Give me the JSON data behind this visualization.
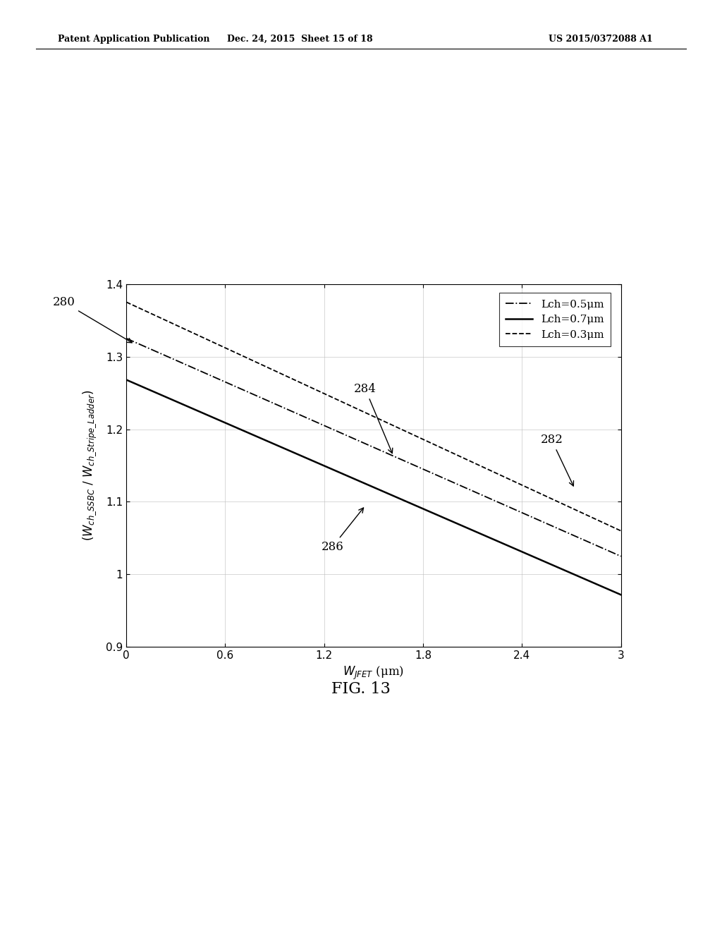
{
  "header_left": "Patent Application Publication",
  "header_center": "Dec. 24, 2015  Sheet 15 of 18",
  "header_right": "US 2015/0372088 A1",
  "fig_label": "FIG. 13",
  "xlabel": "W",
  "xlabel_sub": "JFET",
  "xlabel_unit": " (μm)",
  "xlim": [
    0,
    3
  ],
  "ylim": [
    0.9,
    1.4
  ],
  "xticks": [
    0,
    0.6,
    1.2,
    1.8,
    2.4,
    3
  ],
  "yticks": [
    0.9,
    1.0,
    1.1,
    1.2,
    1.3,
    1.4
  ],
  "legend_labels": [
    "Lch=0.5μm",
    "Lch=0.7μm",
    "Lch=0.3μm"
  ],
  "label_280": "280",
  "label_282": "282",
  "label_284": "284",
  "label_286": "286",
  "line_0.5_start": 1.325,
  "line_0.5_end": 1.025,
  "line_0.7_start": 1.268,
  "line_0.7_end": 0.972,
  "line_0.3_start": 1.375,
  "line_0.3_end": 1.06,
  "background_color": "#ffffff",
  "line_color": "#000000",
  "grid_color": "#bbbbbb",
  "font_size_axis": 12,
  "font_size_tick": 11,
  "font_size_legend": 11,
  "font_size_header": 9,
  "font_size_label": 12,
  "font_size_fig_label": 16
}
